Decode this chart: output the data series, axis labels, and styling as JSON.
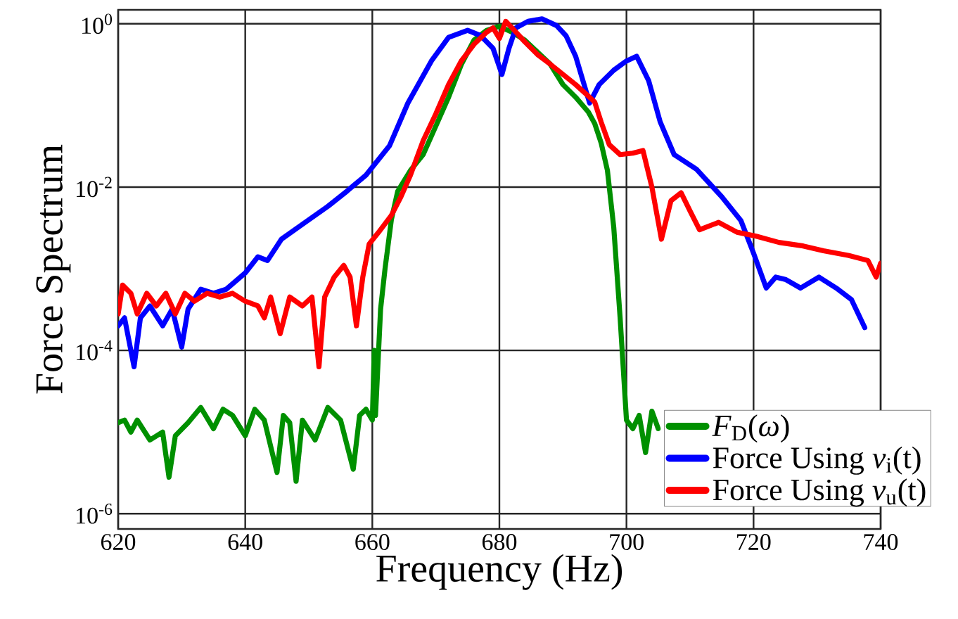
{
  "chart_data": {
    "type": "line",
    "xlabel": "Frequency (Hz)",
    "ylabel": "Force Spectrum",
    "log": "y",
    "grid": true,
    "legend": "bottom right",
    "xlim": [
      620,
      740
    ],
    "xticks": [
      620,
      640,
      660,
      680,
      700,
      720,
      740
    ],
    "ylim": [
      6.5e-07,
      1.48
    ],
    "yticks": [
      {
        "value": 1e-06,
        "label": "10$^{-6}$"
      },
      {
        "value": 0.0001,
        "label": "10$^{-4}$"
      },
      {
        "value": 0.01,
        "label": "10$^{-2}$"
      },
      {
        "value": 1,
        "label": "10$^{0}$"
      }
    ],
    "series": [
      {
        "name": "*F*$_{D}$(*ω*)",
        "color": "#009000",
        "x": [
          620,
          621,
          622,
          623,
          625,
          627,
          628,
          629,
          631,
          633,
          635,
          636.5,
          638,
          640,
          641.5,
          643,
          645,
          646,
          647,
          648,
          649,
          651,
          653,
          655,
          657,
          658,
          659,
          660,
          660.3,
          660.5,
          661.3,
          662,
          663,
          664,
          666,
          668,
          670,
          672,
          674,
          676,
          678,
          680,
          682,
          684,
          686,
          688,
          690,
          692,
          694,
          695,
          696,
          697,
          698,
          699,
          700,
          701,
          702,
          703,
          704,
          705
        ],
        "values": [
          1.3e-05,
          1.4e-05,
          1e-05,
          1.4e-05,
          8e-06,
          1e-05,
          2.8e-06,
          9e-06,
          1.3e-05,
          2e-05,
          1.1e-05,
          1.9e-05,
          1.6e-05,
          9e-06,
          1.9e-05,
          1.4e-05,
          3.2e-06,
          1.6e-05,
          1.3e-05,
          2.5e-06,
          1.4e-05,
          8e-06,
          2e-05,
          1.4e-05,
          3.5e-06,
          1.6e-05,
          1.9e-05,
          1.4e-05,
          0.0001,
          1.6e-05,
          0.00032,
          0.001,
          0.004,
          0.0089,
          0.016,
          0.025,
          0.056,
          0.126,
          0.316,
          0.63,
          0.83,
          0.93,
          0.79,
          0.63,
          0.45,
          0.32,
          0.18,
          0.126,
          0.083,
          0.06,
          0.035,
          0.016,
          0.0032,
          0.00025,
          1.4e-05,
          1.1e-05,
          1.6e-05,
          5.6e-06,
          1.8e-05,
          1.1e-05
        ]
      },
      {
        "name": "Force Using *v*$_{i}$(t)",
        "color": "#0000ff",
        "x": [
          620,
          621,
          622.5,
          623.5,
          625,
          627,
          628.5,
          630,
          631,
          633,
          635,
          637,
          640,
          642,
          643.5,
          645.7,
          649,
          653,
          656,
          659,
          662.7,
          665.6,
          669.3,
          672,
          675,
          677,
          679,
          680.4,
          681.5,
          682.6,
          684.5,
          686.7,
          689,
          690.5,
          692,
          694.2,
          695.7,
          698,
          700,
          701.6,
          703.5,
          705.3,
          707.5,
          711,
          715,
          718,
          720,
          722,
          723.5,
          725,
          727.4,
          730.3,
          733,
          735.4,
          737.5
        ],
        "values": [
          0.0002,
          0.00025,
          6.3e-05,
          0.00025,
          0.00035,
          0.0002,
          0.00032,
          0.00011,
          0.00032,
          0.00056,
          0.0005,
          0.00056,
          0.00089,
          0.0014,
          0.00126,
          0.0023,
          0.0035,
          0.0058,
          0.0089,
          0.014,
          0.032,
          0.107,
          0.35,
          0.68,
          0.83,
          0.72,
          0.5,
          0.24,
          0.5,
          0.89,
          1.07,
          1.15,
          0.95,
          0.71,
          0.4,
          0.107,
          0.18,
          0.27,
          0.35,
          0.4,
          0.2,
          0.063,
          0.025,
          0.0166,
          0.0076,
          0.0039,
          0.00155,
          0.00058,
          0.00079,
          0.00074,
          0.00058,
          0.00079,
          0.00058,
          0.00042,
          0.00019
        ]
      },
      {
        "name": "Force Using *v*$_{u}$(t)",
        "color": "#ff0000",
        "x": [
          620,
          620.7,
          622,
          623,
          624.5,
          626,
          627.5,
          629,
          630.5,
          632,
          634,
          636,
          638,
          640,
          642,
          643,
          644,
          645.5,
          647,
          649,
          650.5,
          651.6,
          652.5,
          654,
          655.5,
          656.5,
          657.5,
          658.5,
          659.5,
          661,
          663,
          664.5,
          666,
          668,
          670,
          672,
          674,
          676,
          678,
          679,
          680,
          681,
          682,
          684,
          686,
          688,
          690,
          692,
          694,
          695,
          696,
          697.3,
          699,
          701,
          702.6,
          704,
          705.5,
          707,
          708.6,
          710,
          711.5,
          714.5,
          717.4,
          720.4,
          724,
          727.8,
          731,
          735,
          738,
          739.3,
          740
        ],
        "values": [
          0.00028,
          0.00063,
          0.0005,
          0.00028,
          0.0005,
          0.00035,
          0.0005,
          0.00028,
          0.0005,
          0.0004,
          0.0005,
          0.00045,
          0.0005,
          0.0004,
          0.00035,
          0.00025,
          0.00045,
          0.00016,
          0.00045,
          0.00035,
          0.00045,
          6.3e-05,
          0.00045,
          0.00079,
          0.0011,
          0.00079,
          0.0002,
          0.00079,
          0.002,
          0.0028,
          0.0045,
          0.0076,
          0.014,
          0.037,
          0.079,
          0.18,
          0.35,
          0.56,
          0.79,
          0.89,
          0.66,
          1.07,
          0.89,
          0.6,
          0.42,
          0.32,
          0.24,
          0.18,
          0.13,
          0.11,
          0.063,
          0.033,
          0.025,
          0.026,
          0.028,
          0.01,
          0.0023,
          0.0068,
          0.0085,
          0.0051,
          0.003,
          0.0037,
          0.0028,
          0.0025,
          0.0021,
          0.0019,
          0.00166,
          0.00145,
          0.00126,
          0.00079,
          0.00117
        ]
      }
    ]
  }
}
